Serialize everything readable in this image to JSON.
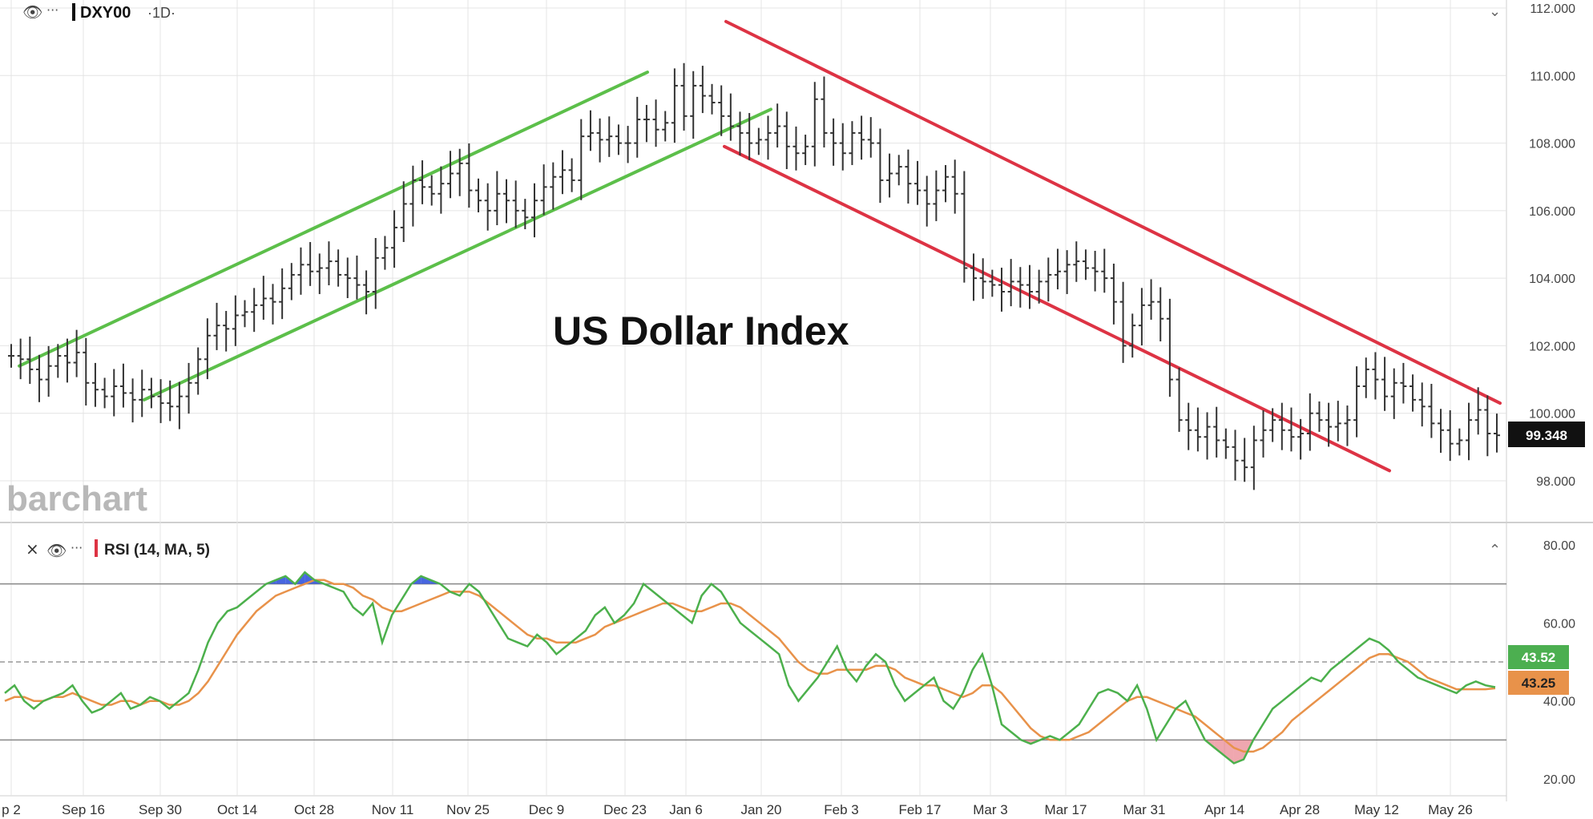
{
  "header": {
    "symbol": "DXY00",
    "interval": "·1D·",
    "dots": "···",
    "chevron": "⌄"
  },
  "overlay_title": "US Dollar Index",
  "watermark": "barchart",
  "rsi_header": {
    "label": "RSI (14, MA, 5)",
    "close": "×",
    "dots": "···",
    "chevron": "⌃"
  },
  "colors": {
    "bars": "#333333",
    "up_channel": "#5cbf4a",
    "down_channel": "#dd3344",
    "rsi": "#4cb04c",
    "rsi_ma": "#e8924a",
    "overbought_fill": "#3355dd",
    "oversold_fill": "#e05060",
    "price_tag_bg": "#111111",
    "rsi_tag_bg": "#4caf50",
    "rsi_ma_tag_bg": "#e8924a",
    "grid": "#e4e4e4"
  },
  "chart_data": [
    {
      "type": "ohlc",
      "title": "",
      "price_axis": [
        "112.000",
        "110.000",
        "108.000",
        "106.000",
        "104.000",
        "102.000",
        "100.000",
        "98.000"
      ],
      "ylim": [
        97.5,
        112.2
      ],
      "last_price": "99.348",
      "x_ticks": [
        "p 2",
        "Sep 16",
        "Sep 30",
        "Oct 14",
        "Oct 28",
        "Nov 11",
        "Nov 25",
        "Dec 9",
        "Dec 23",
        "Jan 6",
        "Jan 20",
        "Feb 3",
        "Feb 17",
        "Mar 3",
        "Mar 17",
        "Mar 31",
        "Apr 14",
        "Apr 28",
        "May 12",
        "May 26"
      ],
      "closes": [
        101.7,
        101.6,
        101.3,
        101.0,
        101.4,
        101.7,
        101.5,
        101.8,
        100.9,
        100.7,
        100.5,
        100.8,
        100.6,
        100.4,
        100.7,
        100.5,
        100.3,
        100.2,
        100.5,
        100.9,
        101.6,
        102.3,
        102.6,
        102.5,
        102.9,
        103.0,
        103.2,
        103.4,
        103.3,
        103.7,
        104.1,
        104.4,
        104.2,
        104.3,
        104.5,
        104.1,
        104.0,
        103.8,
        103.6,
        104.6,
        104.9,
        105.5,
        106.2,
        106.9,
        106.7,
        106.5,
        106.8,
        107.1,
        107.4,
        106.6,
        106.3,
        106.0,
        106.5,
        106.3,
        106.0,
        105.8,
        106.3,
        106.7,
        107.0,
        107.2,
        106.9,
        108.2,
        108.3,
        108.1,
        108.2,
        108.0,
        108.0,
        108.7,
        108.7,
        108.4,
        108.6,
        109.7,
        108.8,
        109.7,
        109.4,
        109.2,
        108.8,
        108.5,
        108.3,
        108.0,
        108.1,
        108.3,
        108.5,
        107.9,
        107.7,
        107.9,
        109.3,
        108.3,
        108.0,
        107.7,
        108.3,
        108.1,
        108.0,
        106.9,
        107.1,
        107.3,
        106.8,
        106.6,
        106.2,
        106.6,
        107.0,
        106.5,
        104.3,
        104.0,
        103.9,
        103.8,
        103.6,
        103.9,
        103.8,
        103.6,
        103.9,
        104.1,
        104.2,
        104.4,
        104.5,
        104.3,
        104.2,
        104.0,
        103.3,
        102.0,
        102.6,
        103.2,
        103.3,
        102.8,
        101.0,
        99.8,
        99.5,
        99.3,
        99.6,
        99.2,
        99.0,
        98.6,
        98.4,
        99.2,
        99.5,
        99.8,
        99.5,
        99.3,
        99.4,
        100.0,
        99.8,
        99.6,
        99.7,
        99.8,
        100.8,
        101.3,
        101.0,
        100.5,
        100.9,
        100.8,
        100.4,
        100.2,
        99.7,
        99.5,
        99.1,
        99.2,
        99.8,
        100.1,
        99.4,
        99.348
      ]
    },
    {
      "type": "line",
      "title": "",
      "yaxis": [
        "80.00",
        "60.00",
        "40.00",
        "20.00"
      ],
      "ylim": [
        18,
        82
      ],
      "current_rsi": "43.52",
      "current_ma": "43.25",
      "series": [
        {
          "values": [
            42,
            44,
            40,
            38,
            40,
            41,
            42,
            44,
            40,
            37,
            38,
            40,
            42,
            38,
            39,
            41,
            40,
            38,
            40,
            42,
            48,
            55,
            60,
            63,
            64,
            66,
            68,
            70,
            71,
            72,
            70,
            73,
            71,
            70,
            69,
            68,
            64,
            62,
            65,
            55,
            62,
            66,
            70,
            72,
            71,
            70,
            68,
            67,
            70,
            68,
            64,
            60,
            56,
            55,
            54,
            57,
            55,
            52,
            54,
            56,
            58,
            62,
            64,
            60,
            62,
            65,
            70,
            68,
            66,
            64,
            62,
            60,
            67,
            70,
            68,
            64,
            60,
            58,
            56,
            54,
            52,
            44,
            40,
            43,
            46,
            50,
            54,
            48,
            45,
            49,
            52,
            50,
            44,
            40,
            42,
            44,
            46,
            40,
            38,
            42,
            48,
            52,
            44,
            34,
            32,
            30,
            29,
            30,
            31,
            30,
            32,
            34,
            38,
            42,
            43,
            42,
            40,
            44,
            38,
            30,
            34,
            38,
            40,
            35,
            30,
            28,
            26,
            24,
            25,
            30,
            34,
            38,
            40,
            42,
            44,
            46,
            45,
            48,
            50,
            52,
            54,
            56,
            55,
            53,
            50,
            48,
            46,
            45,
            44,
            43,
            42,
            44,
            45,
            44,
            43.52
          ]
        },
        {
          "values": [
            40,
            41,
            41,
            40,
            40,
            41,
            41,
            42,
            41,
            40,
            39,
            39,
            40,
            40,
            39,
            40,
            40,
            39,
            39,
            40,
            42,
            45,
            49,
            53,
            57,
            60,
            63,
            65,
            67,
            68,
            69,
            70,
            71,
            71,
            70,
            70,
            69,
            67,
            66,
            64,
            63,
            63,
            64,
            65,
            66,
            67,
            68,
            68,
            68,
            67,
            65,
            63,
            61,
            59,
            57,
            56,
            56,
            55,
            55,
            55,
            56,
            57,
            59,
            60,
            61,
            62,
            63,
            64,
            65,
            65,
            64,
            63,
            63,
            64,
            65,
            65,
            64,
            62,
            60,
            58,
            56,
            53,
            50,
            48,
            47,
            47,
            48,
            48,
            48,
            48,
            49,
            49,
            48,
            46,
            45,
            44,
            44,
            43,
            42,
            41,
            42,
            44,
            44,
            42,
            39,
            36,
            33,
            31,
            30,
            30,
            30,
            31,
            32,
            34,
            36,
            38,
            40,
            41,
            41,
            40,
            39,
            38,
            37,
            36,
            34,
            32,
            30,
            28,
            27,
            27,
            28,
            30,
            32,
            35,
            37,
            39,
            41,
            43,
            45,
            47,
            49,
            51,
            52,
            52,
            51,
            50,
            48,
            46,
            45,
            44,
            43,
            43,
            43,
            43,
            43.25
          ]
        }
      ]
    }
  ]
}
